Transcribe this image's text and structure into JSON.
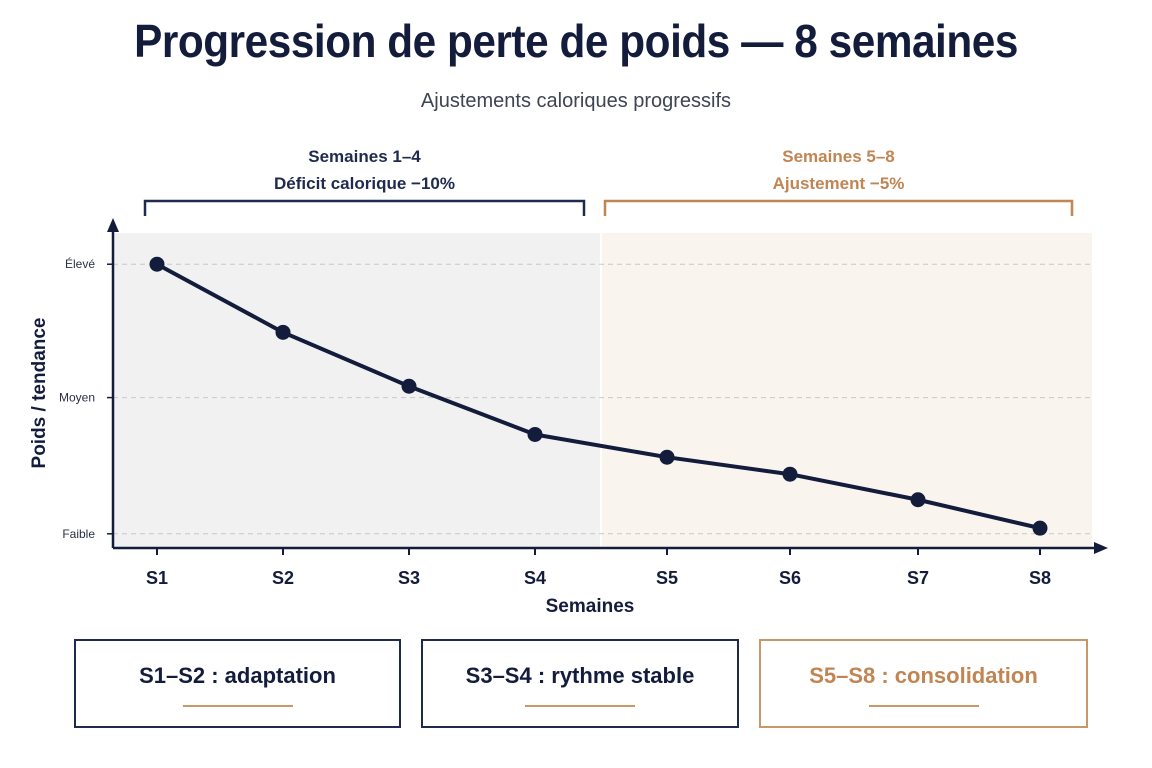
{
  "header": {
    "title": "Progression de perte de poids — 8 semaines",
    "subtitle": "Ajustements caloriques progressifs"
  },
  "phases": [
    {
      "line1": "Semaines 1–4",
      "line2": "Déficit calorique −10%",
      "color": "#1f2a4d",
      "region_color": "#f1f1f1",
      "x_range": [
        0.5,
        4.5
      ]
    },
    {
      "line1": "Semaines 5–8",
      "line2": "Ajustement −5%",
      "color": "#c08552",
      "region_color": "#f9f5ee",
      "x_range": [
        4.5,
        8.5
      ]
    }
  ],
  "summary_cards": [
    {
      "label": "S1–S2 :  adaptation",
      "accent": false
    },
    {
      "label": "S3–S4 :  rythme stable",
      "accent": false
    },
    {
      "label": "S5–S8 : consolidation",
      "accent": true
    }
  ],
  "chart_data": {
    "type": "line",
    "xlabel": "Semaines",
    "ylabel": "Poids / tendance",
    "categories": [
      "S1",
      "S2",
      "S3",
      "S4",
      "S5",
      "S6",
      "S7",
      "S8"
    ],
    "series": [
      {
        "values": [
          0.95,
          0.71,
          0.52,
          0.35,
          0.27,
          0.21,
          0.12,
          0.02
        ],
        "color": "#141c3c"
      }
    ],
    "y_ticks": [
      {
        "label": "Élevé",
        "value": 0.95
      },
      {
        "label": "Moyen",
        "value": 0.48
      },
      {
        "label": "Faible",
        "value": 0.0
      }
    ],
    "ylim": [
      -0.05,
      1.06
    ],
    "grid": true
  }
}
